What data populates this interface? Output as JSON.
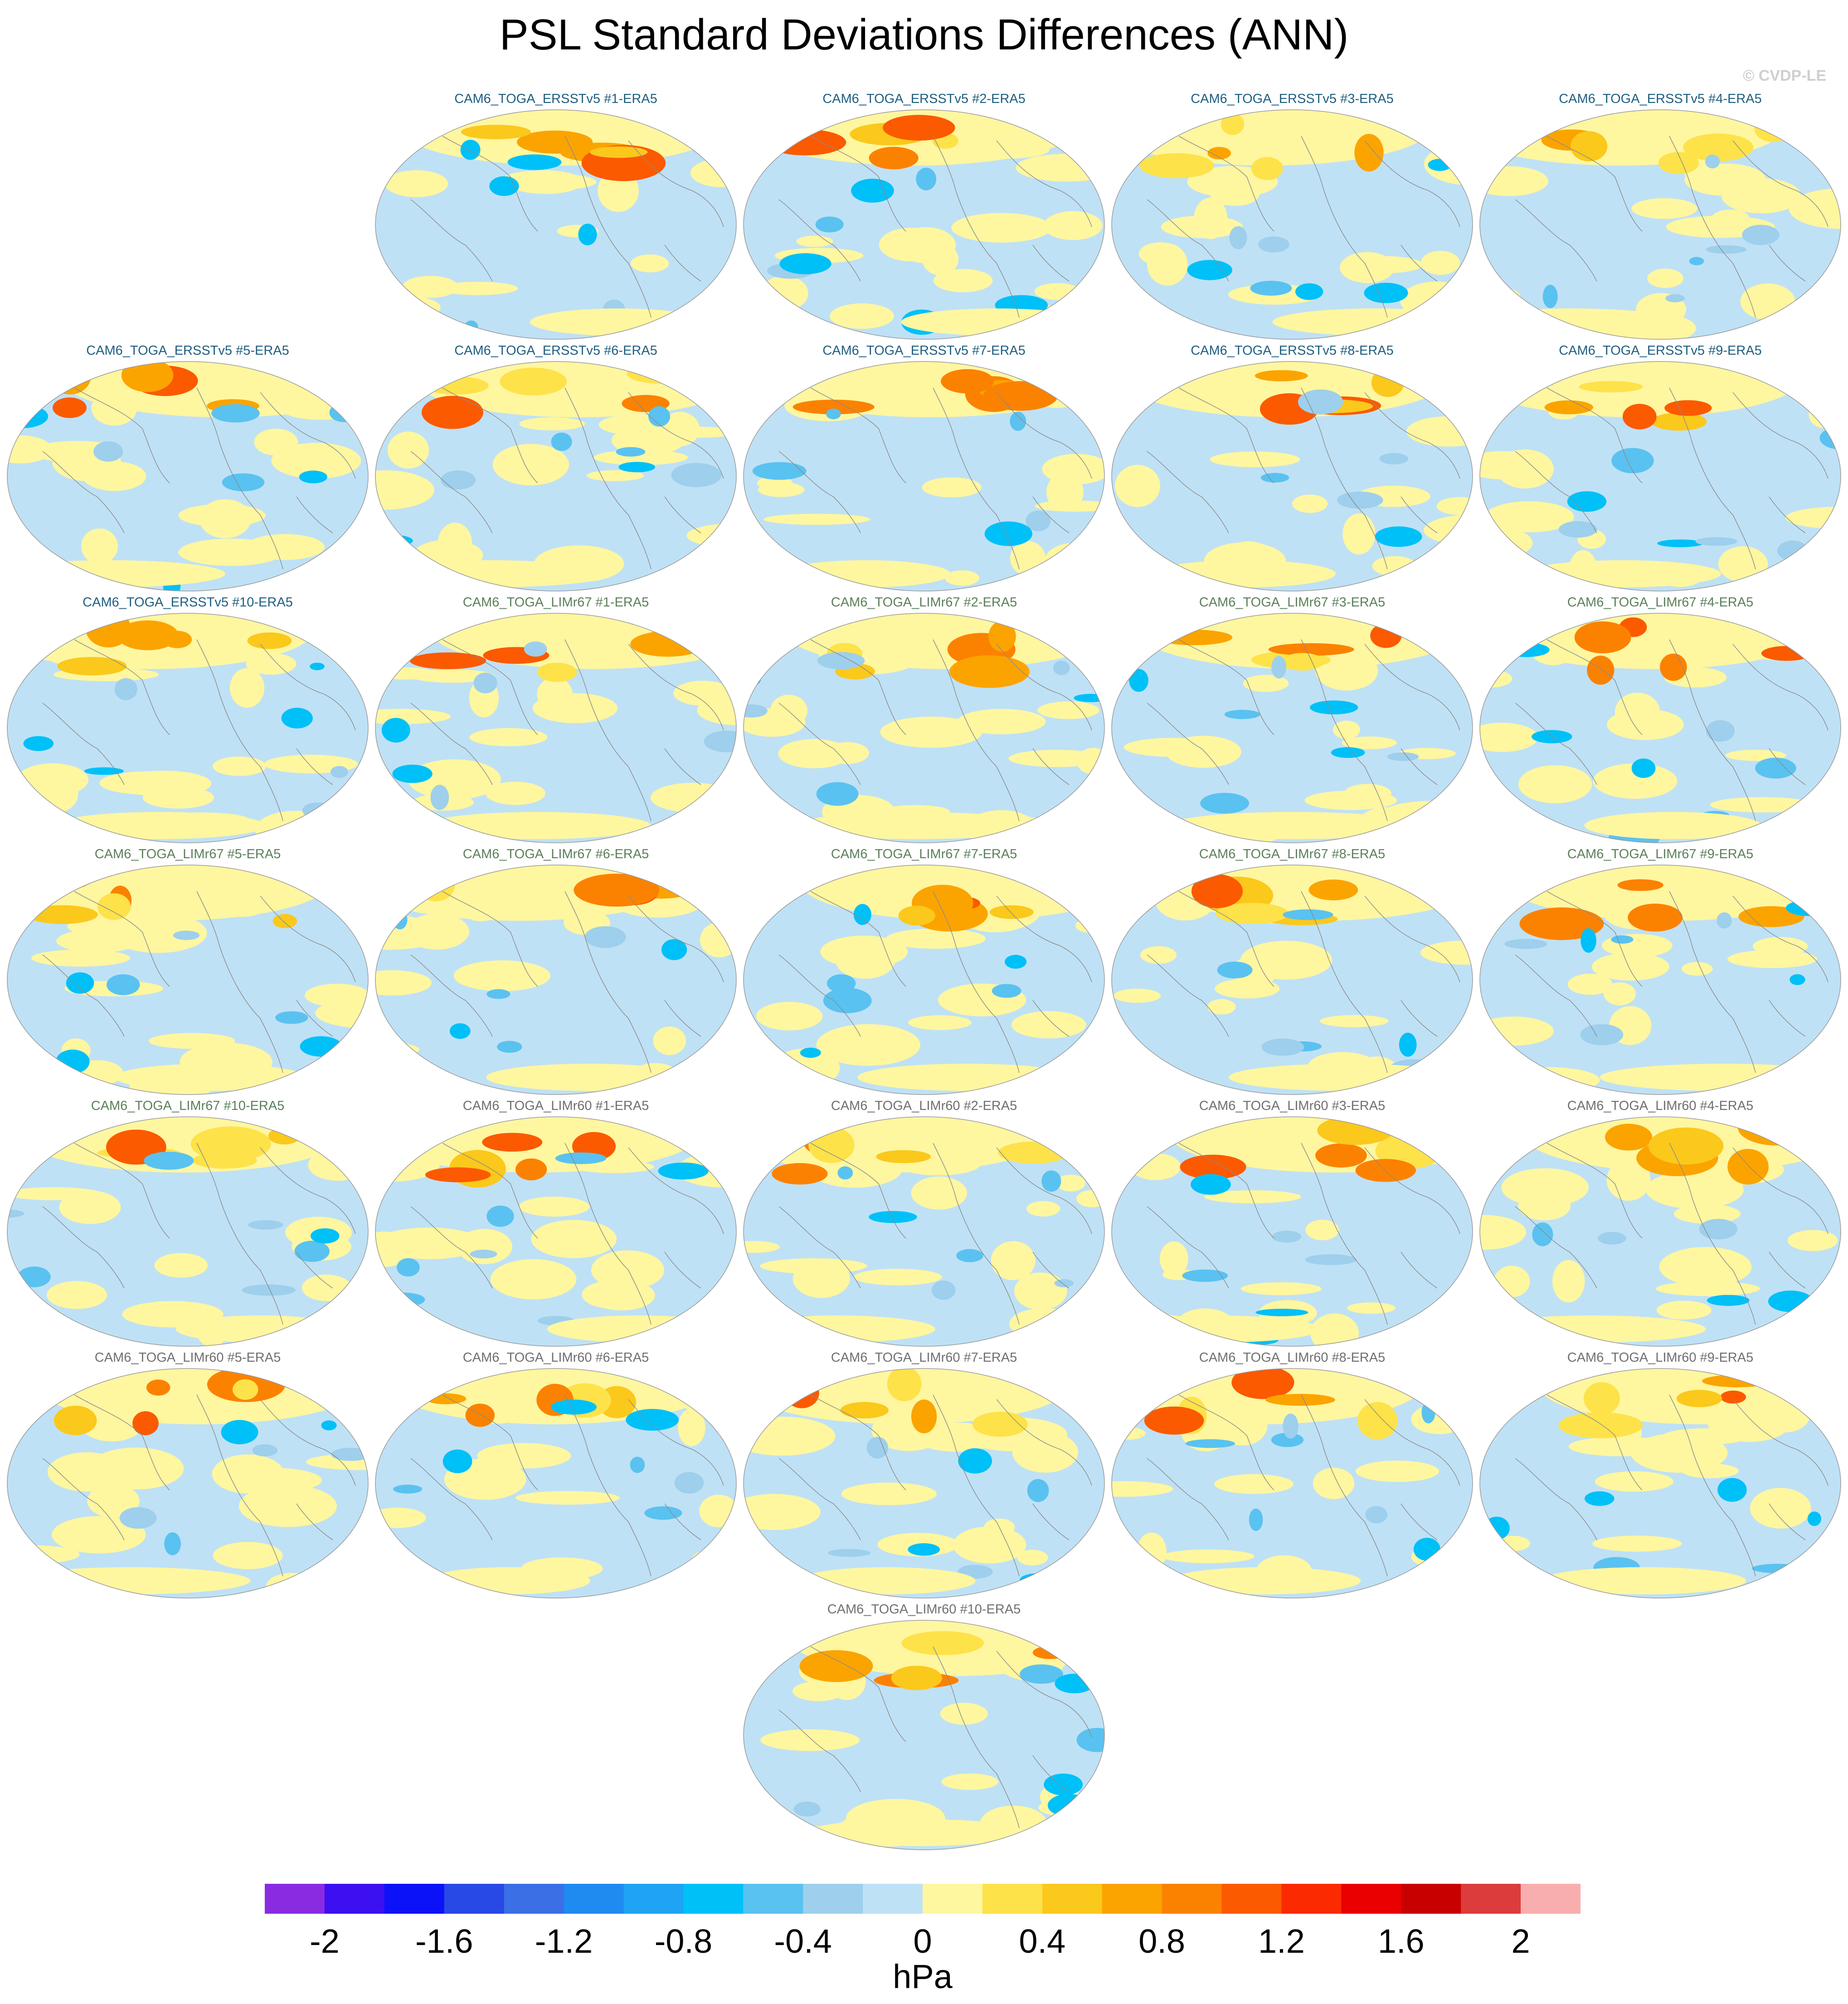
{
  "title": "PSL Standard Deviations Differences (ANN)",
  "credit": "© CVDP-LE",
  "colors": {
    "title_ersst": "#1f5e80",
    "title_lim67": "#5b7f5b",
    "title_lim60": "#6f6f6f"
  },
  "panels": [
    {
      "label": "CAM6_TOGA_ERSSTv5 #1-ERA5",
      "group": "ersst"
    },
    {
      "label": "CAM6_TOGA_ERSSTv5 #2-ERA5",
      "group": "ersst"
    },
    {
      "label": "CAM6_TOGA_ERSSTv5 #3-ERA5",
      "group": "ersst"
    },
    {
      "label": "CAM6_TOGA_ERSSTv5 #4-ERA5",
      "group": "ersst"
    },
    {
      "label": "CAM6_TOGA_ERSSTv5 #5-ERA5",
      "group": "ersst"
    },
    {
      "label": "CAM6_TOGA_ERSSTv5 #6-ERA5",
      "group": "ersst"
    },
    {
      "label": "CAM6_TOGA_ERSSTv5 #7-ERA5",
      "group": "ersst"
    },
    {
      "label": "CAM6_TOGA_ERSSTv5 #8-ERA5",
      "group": "ersst"
    },
    {
      "label": "CAM6_TOGA_ERSSTv5 #9-ERA5",
      "group": "ersst"
    },
    {
      "label": "CAM6_TOGA_ERSSTv5 #10-ERA5",
      "group": "ersst"
    },
    {
      "label": "CAM6_TOGA_LIMr67 #1-ERA5",
      "group": "lim67"
    },
    {
      "label": "CAM6_TOGA_LIMr67 #2-ERA5",
      "group": "lim67"
    },
    {
      "label": "CAM6_TOGA_LIMr67 #3-ERA5",
      "group": "lim67"
    },
    {
      "label": "CAM6_TOGA_LIMr67 #4-ERA5",
      "group": "lim67"
    },
    {
      "label": "CAM6_TOGA_LIMr67 #5-ERA5",
      "group": "lim67"
    },
    {
      "label": "CAM6_TOGA_LIMr67 #6-ERA5",
      "group": "lim67"
    },
    {
      "label": "CAM6_TOGA_LIMr67 #7-ERA5",
      "group": "lim67"
    },
    {
      "label": "CAM6_TOGA_LIMr67 #8-ERA5",
      "group": "lim67"
    },
    {
      "label": "CAM6_TOGA_LIMr67 #9-ERA5",
      "group": "lim67"
    },
    {
      "label": "CAM6_TOGA_LIMr67 #10-ERA5",
      "group": "lim67"
    },
    {
      "label": "CAM6_TOGA_LIMr60 #1-ERA5",
      "group": "lim60"
    },
    {
      "label": "CAM6_TOGA_LIMr60 #2-ERA5",
      "group": "lim60"
    },
    {
      "label": "CAM6_TOGA_LIMr60 #3-ERA5",
      "group": "lim60"
    },
    {
      "label": "CAM6_TOGA_LIMr60 #4-ERA5",
      "group": "lim60"
    },
    {
      "label": "CAM6_TOGA_LIMr60 #5-ERA5",
      "group": "lim60"
    },
    {
      "label": "CAM6_TOGA_LIMr60 #6-ERA5",
      "group": "lim60"
    },
    {
      "label": "CAM6_TOGA_LIMr60 #7-ERA5",
      "group": "lim60"
    },
    {
      "label": "CAM6_TOGA_LIMr60 #8-ERA5",
      "group": "lim60"
    },
    {
      "label": "CAM6_TOGA_LIMr60 #9-ERA5",
      "group": "lim60"
    },
    {
      "label": "CAM6_TOGA_LIMr60 #10-ERA5",
      "group": "lim60"
    }
  ],
  "colorbar": {
    "colors": [
      "#8a2be2",
      "#3c10f0",
      "#0c12f8",
      "#2849e6",
      "#3a6fe6",
      "#1f8bf0",
      "#1ea3f5",
      "#00c0f8",
      "#5ac2f0",
      "#9ecfec",
      "#bfe1f5",
      "#fff6a0",
      "#fde24a",
      "#fbc81c",
      "#fba400",
      "#fb8200",
      "#fb5a00",
      "#fb2a00",
      "#ea0000",
      "#c80000",
      "#dc3c3c",
      "#f8aeae"
    ],
    "labels": [
      "-2",
      "-1.6",
      "-1.2",
      "-0.8",
      "-0.4",
      "0",
      "0.4",
      "0.8",
      "1.2",
      "1.6",
      "2"
    ],
    "units": "hPa"
  }
}
